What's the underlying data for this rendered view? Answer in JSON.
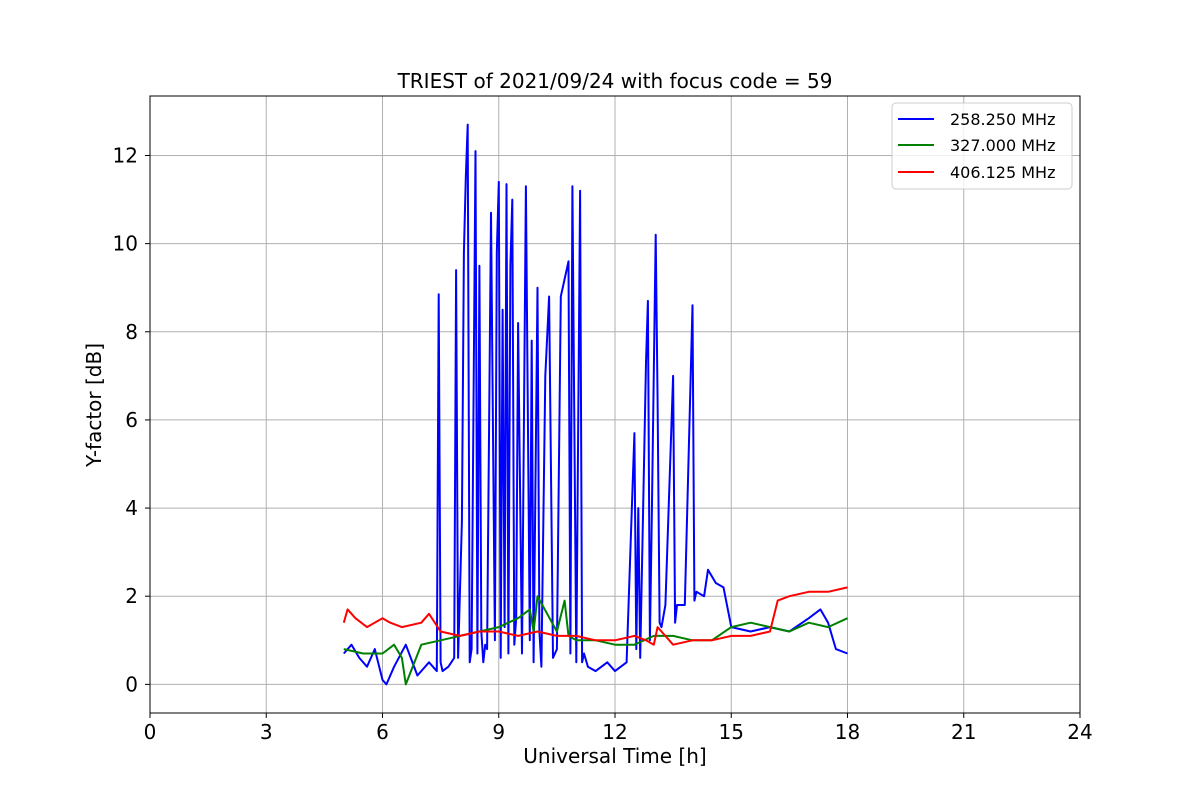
{
  "chart_data": {
    "type": "line",
    "title": "TRIEST of 2021/09/24 with focus code = 59",
    "xlabel": "Universal Time [h]",
    "ylabel": "Y-factor [dB]",
    "xlim": [
      0,
      24
    ],
    "ylim": [
      -0.65,
      13.35
    ],
    "xticks": [
      0,
      3,
      6,
      9,
      12,
      15,
      18,
      21,
      24
    ],
    "yticks": [
      0,
      2,
      4,
      6,
      8,
      10,
      12
    ],
    "grid": true,
    "legend_position": "top-right",
    "series": [
      {
        "name": "258.250 MHz",
        "color": "#0000ff",
        "x": [
          5.0,
          5.2,
          5.4,
          5.6,
          5.8,
          6.0,
          6.1,
          6.3,
          6.6,
          6.9,
          7.2,
          7.4,
          7.45,
          7.5,
          7.55,
          7.7,
          7.85,
          7.9,
          7.95,
          8.05,
          8.1,
          8.15,
          8.2,
          8.25,
          8.3,
          8.4,
          8.45,
          8.5,
          8.55,
          8.6,
          8.65,
          8.7,
          8.8,
          8.9,
          8.95,
          9.0,
          9.05,
          9.1,
          9.15,
          9.2,
          9.25,
          9.3,
          9.35,
          9.4,
          9.45,
          9.5,
          9.6,
          9.7,
          9.8,
          9.85,
          9.9,
          10.0,
          10.05,
          10.1,
          10.2,
          10.3,
          10.4,
          10.5,
          10.6,
          10.8,
          10.85,
          10.9,
          11.0,
          11.1,
          11.15,
          11.2,
          11.3,
          11.5,
          11.8,
          12.0,
          12.3,
          12.5,
          12.55,
          12.6,
          12.65,
          12.8,
          12.85,
          12.9,
          12.95,
          13.05,
          13.1,
          13.15,
          13.2,
          13.3,
          13.5,
          13.55,
          13.6,
          13.8,
          14.0,
          14.05,
          14.1,
          14.3,
          14.4,
          14.6,
          14.8,
          15.0,
          15.5,
          16.0,
          16.5,
          17.0,
          17.3,
          17.5,
          17.7,
          18.0
        ],
        "y": [
          0.7,
          0.9,
          0.6,
          0.4,
          0.8,
          0.1,
          0.0,
          0.4,
          0.9,
          0.2,
          0.5,
          0.3,
          8.85,
          0.5,
          0.3,
          0.4,
          0.6,
          9.4,
          0.6,
          3.7,
          9.8,
          11.5,
          12.7,
          0.5,
          0.8,
          12.1,
          0.7,
          9.5,
          1.2,
          0.5,
          0.9,
          0.8,
          10.7,
          1.0,
          9.8,
          11.4,
          0.6,
          8.5,
          1.3,
          11.35,
          0.7,
          9.5,
          11.0,
          0.9,
          1.5,
          8.2,
          0.7,
          11.3,
          1.0,
          7.8,
          0.5,
          9.0,
          1.2,
          0.4,
          7.0,
          8.8,
          0.6,
          0.8,
          8.8,
          9.6,
          0.7,
          11.3,
          0.5,
          11.2,
          0.5,
          0.7,
          0.4,
          0.3,
          0.5,
          0.3,
          0.5,
          5.7,
          0.8,
          4.0,
          0.6,
          7.3,
          8.7,
          1.0,
          3.8,
          10.2,
          6.4,
          1.4,
          1.3,
          1.8,
          7.0,
          1.4,
          1.8,
          1.8,
          8.6,
          1.9,
          2.1,
          2.0,
          2.6,
          2.3,
          2.2,
          1.3,
          1.2,
          1.3,
          1.2,
          1.5,
          1.7,
          1.4,
          0.8,
          0.7
        ]
      },
      {
        "name": "327.000 MHz",
        "color": "#008000",
        "x": [
          5.0,
          5.5,
          6.0,
          6.3,
          6.5,
          6.6,
          7.0,
          7.5,
          8.0,
          8.5,
          9.0,
          9.5,
          9.8,
          9.9,
          10.0,
          10.5,
          10.7,
          10.8,
          11.0,
          11.5,
          12.0,
          12.5,
          13.0,
          13.5,
          14.0,
          14.5,
          15.0,
          15.5,
          16.0,
          16.5,
          17.0,
          17.5,
          18.0
        ],
        "y": [
          0.8,
          0.7,
          0.7,
          0.9,
          0.6,
          0.0,
          0.9,
          1.0,
          1.1,
          1.2,
          1.3,
          1.5,
          1.7,
          1.2,
          2.0,
          1.2,
          1.9,
          1.1,
          1.0,
          1.0,
          0.9,
          0.9,
          1.1,
          1.1,
          1.0,
          1.0,
          1.3,
          1.4,
          1.3,
          1.2,
          1.4,
          1.3,
          1.5
        ]
      },
      {
        "name": "406.125 MHz",
        "color": "#ff0000",
        "x": [
          5.0,
          5.1,
          5.3,
          5.6,
          6.0,
          6.2,
          6.5,
          7.0,
          7.2,
          7.5,
          8.0,
          8.5,
          9.0,
          9.5,
          10.0,
          10.5,
          11.0,
          11.5,
          12.0,
          12.5,
          12.8,
          13.0,
          13.1,
          13.5,
          14.0,
          14.5,
          15.0,
          15.5,
          16.0,
          16.2,
          16.5,
          17.0,
          17.5,
          18.0
        ],
        "y": [
          1.4,
          1.7,
          1.5,
          1.3,
          1.5,
          1.4,
          1.3,
          1.4,
          1.6,
          1.2,
          1.1,
          1.2,
          1.2,
          1.1,
          1.2,
          1.1,
          1.1,
          1.0,
          1.0,
          1.1,
          1.0,
          0.9,
          1.3,
          0.9,
          1.0,
          1.0,
          1.1,
          1.1,
          1.2,
          1.9,
          2.0,
          2.1,
          2.1,
          2.2
        ]
      }
    ]
  }
}
